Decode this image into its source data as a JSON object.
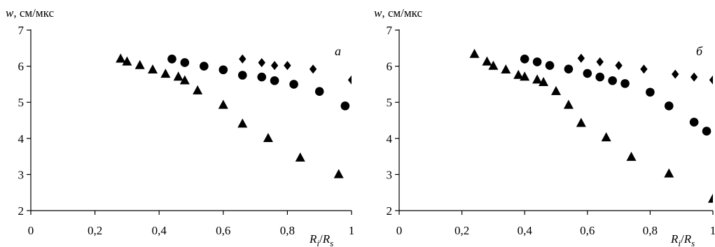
{
  "chart_data": [
    {
      "type": "scatter",
      "panel_label": "а",
      "ylabel_var": "w",
      "ylabel_unit": ", см/мкс",
      "xlabel": {
        "a": "R",
        "a_sub": "i",
        "sep": "/",
        "b": "R",
        "b_sub": "s"
      },
      "xlim": [
        0,
        1
      ],
      "ylim": [
        2,
        7
      ],
      "x_ticks": [
        0,
        0.2,
        0.4,
        0.6,
        0.8,
        1
      ],
      "x_tick_labels": [
        "0",
        "0,2",
        "0,4",
        "0,6",
        "0,8",
        "1"
      ],
      "y_ticks": [
        2,
        3,
        4,
        5,
        6,
        7
      ],
      "y_tick_labels": [
        "2",
        "3",
        "4",
        "5",
        "6",
        "7"
      ],
      "series": [
        {
          "marker": "triangle",
          "x": [
            0.28,
            0.3,
            0.34,
            0.38,
            0.42,
            0.46,
            0.48,
            0.52,
            0.6,
            0.66,
            0.74,
            0.84,
            0.96
          ],
          "y": [
            6.2,
            6.12,
            6.02,
            5.9,
            5.78,
            5.7,
            5.6,
            5.32,
            4.92,
            4.4,
            4.0,
            3.46,
            3.0
          ]
        },
        {
          "marker": "circle",
          "x": [
            0.44,
            0.48,
            0.54,
            0.6,
            0.66,
            0.72,
            0.76,
            0.82,
            0.9,
            0.98
          ],
          "y": [
            6.2,
            6.1,
            6.0,
            5.9,
            5.75,
            5.7,
            5.6,
            5.5,
            5.3,
            4.9
          ]
        },
        {
          "marker": "diamond",
          "x": [
            0.66,
            0.72,
            0.76,
            0.8,
            0.88,
            1.0
          ],
          "y": [
            6.2,
            6.1,
            6.02,
            6.02,
            5.92,
            5.62
          ]
        }
      ]
    },
    {
      "type": "scatter",
      "panel_label": "б",
      "ylabel_var": "w",
      "ylabel_unit": ", см/мкс",
      "xlabel": {
        "a": "R",
        "a_sub": "i",
        "sep": "/",
        "b": "R",
        "b_sub": "s"
      },
      "xlim": [
        0,
        1
      ],
      "ylim": [
        2,
        7
      ],
      "x_ticks": [
        0,
        0.2,
        0.4,
        0.6,
        0.8,
        1
      ],
      "x_tick_labels": [
        "0",
        "0,2",
        "0,4",
        "0,6",
        "0,8",
        "1"
      ],
      "y_ticks": [
        2,
        3,
        4,
        5,
        6,
        7
      ],
      "y_tick_labels": [
        "2",
        "3",
        "4",
        "5",
        "6",
        "7"
      ],
      "series": [
        {
          "marker": "triangle",
          "x": [
            0.24,
            0.28,
            0.3,
            0.34,
            0.38,
            0.4,
            0.44,
            0.46,
            0.5,
            0.54,
            0.58,
            0.66,
            0.74,
            0.86,
            1.0
          ],
          "y": [
            6.33,
            6.12,
            6.0,
            5.9,
            5.75,
            5.7,
            5.62,
            5.55,
            5.3,
            4.92,
            4.42,
            4.02,
            3.48,
            3.02,
            2.32
          ]
        },
        {
          "marker": "circle",
          "x": [
            0.4,
            0.44,
            0.48,
            0.54,
            0.6,
            0.64,
            0.68,
            0.72,
            0.8,
            0.86,
            0.94,
            0.98
          ],
          "y": [
            6.2,
            6.12,
            6.02,
            5.92,
            5.8,
            5.7,
            5.6,
            5.52,
            5.28,
            4.9,
            4.45,
            4.2
          ]
        },
        {
          "marker": "diamond",
          "x": [
            0.58,
            0.64,
            0.7,
            0.78,
            0.88,
            0.94,
            1.0
          ],
          "y": [
            6.22,
            6.12,
            6.02,
            5.92,
            5.78,
            5.7,
            5.62
          ]
        }
      ]
    }
  ]
}
